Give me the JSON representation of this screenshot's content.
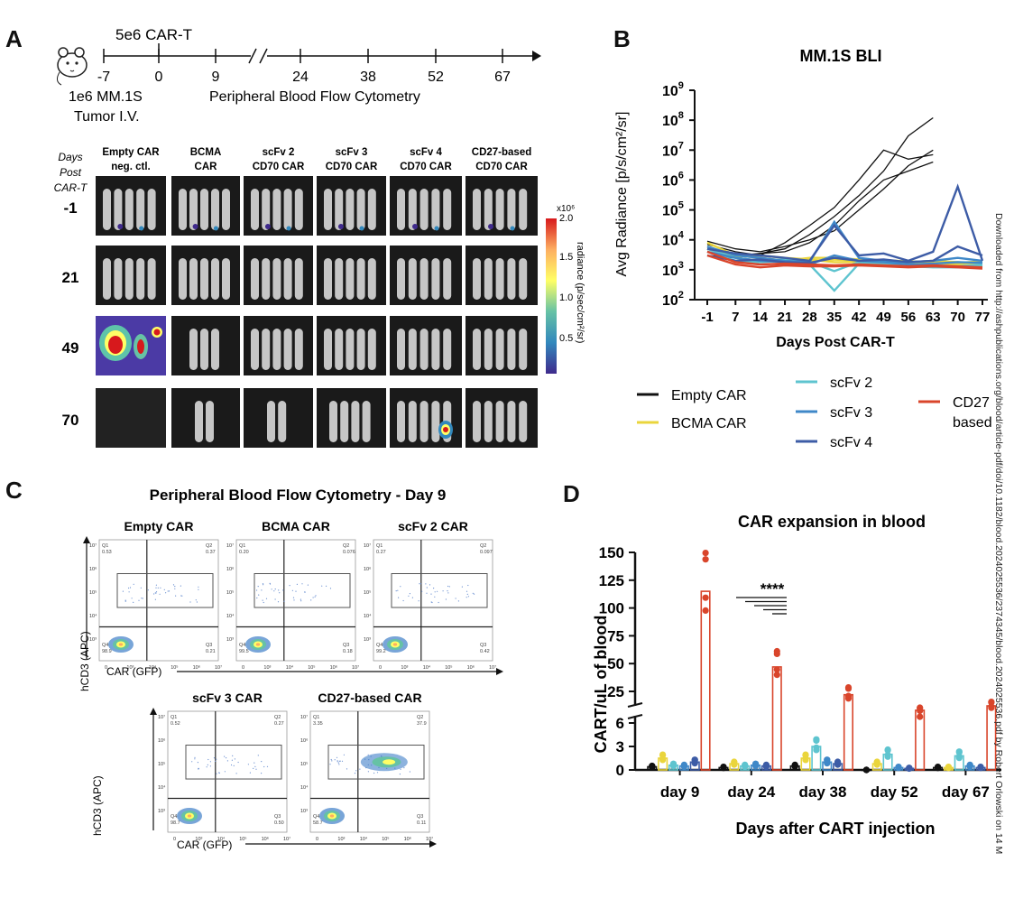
{
  "panel_labels": {
    "a": "A",
    "b": "B",
    "c": "C",
    "d": "D"
  },
  "panel_a": {
    "dose": "5e6 CAR-T",
    "timeline_ticks": [
      "-7",
      "0",
      "9",
      "24",
      "38",
      "52",
      "67"
    ],
    "tumor_line1": "1e6 MM.1S",
    "tumor_line2": "Tumor I.V.",
    "flow_label": "Peripheral Blood Flow Cytometry",
    "row_header": [
      "Days",
      "Post",
      "CAR-T"
    ],
    "days": [
      "-1",
      "21",
      "49",
      "70"
    ],
    "groups": [
      {
        "line1": "Empty CAR",
        "line2": "neg. ctl."
      },
      {
        "line1": "BCMA",
        "line2": "CAR"
      },
      {
        "line1": "scFv 2",
        "line2": "CD70 CAR"
      },
      {
        "line1": "scFv 3",
        "line2": "CD70 CAR"
      },
      {
        "line1": "scFv 4",
        "line2": "CD70 CAR"
      },
      {
        "line1": "CD27-based",
        "line2": "CD70 CAR"
      }
    ],
    "colorbar": {
      "multiplier": "x10⁶",
      "ticks": [
        "2.0",
        "1.5",
        "1.0",
        "0.5"
      ],
      "label": "radiance (p/sec/cm²/sr)",
      "colors": [
        "#d7191c",
        "#fdae61",
        "#ffff66",
        "#66c2a5",
        "#3288bd",
        "#3f2a8c"
      ]
    }
  },
  "panel_b": {
    "chart_data": {
      "type": "line",
      "title": "MM.1S BLI",
      "xlabel": "Days Post CAR-T",
      "ylabel": "Avg Radiance [p/s/cm²/sr]",
      "yscale": "log",
      "ylim": [
        100,
        1000000000
      ],
      "y_ticks": [
        {
          "base": "10",
          "exp": "9"
        },
        {
          "base": "10",
          "exp": "8"
        },
        {
          "base": "10",
          "exp": "7"
        },
        {
          "base": "10",
          "exp": "6"
        },
        {
          "base": "10",
          "exp": "5"
        },
        {
          "base": "10",
          "exp": "4"
        },
        {
          "base": "10",
          "exp": "3"
        },
        {
          "base": "10",
          "exp": "2"
        }
      ],
      "x_ticks": [
        "-1",
        "7",
        "14",
        "21",
        "28",
        "35",
        "42",
        "49",
        "56",
        "63",
        "70",
        "77"
      ],
      "legend_position": "bottom",
      "series": [
        {
          "name": "Empty CAR",
          "color": "#111111",
          "lines": [
            [
              [
                -1,
                5000
              ],
              [
                7,
                3000
              ],
              [
                14,
                3500
              ],
              [
                21,
                5000
              ],
              [
                28,
                15000
              ],
              [
                35,
                60000
              ],
              [
                42,
                300000
              ],
              [
                49,
                2000000
              ],
              [
                56,
                30000000
              ],
              [
                63,
                120000000
              ]
            ],
            [
              [
                -1,
                7000
              ],
              [
                7,
                4000
              ],
              [
                14,
                3000
              ],
              [
                21,
                8000
              ],
              [
                28,
                30000
              ],
              [
                35,
                120000
              ],
              [
                42,
                1000000
              ],
              [
                49,
                10000000
              ],
              [
                56,
                5000000
              ],
              [
                63,
                7000000
              ]
            ],
            [
              [
                -1,
                3000
              ],
              [
                7,
                2500
              ],
              [
                14,
                3500
              ],
              [
                21,
                4000
              ],
              [
                28,
                8000
              ],
              [
                35,
                30000
              ],
              [
                42,
                200000
              ],
              [
                49,
                1000000
              ],
              [
                56,
                2000000
              ],
              [
                63,
                4000000
              ]
            ],
            [
              [
                -1,
                9000
              ],
              [
                7,
                5000
              ],
              [
                14,
                4000
              ],
              [
                21,
                6000
              ],
              [
                28,
                10000
              ],
              [
                35,
                20000
              ],
              [
                42,
                100000
              ],
              [
                49,
                500000
              ],
              [
                56,
                3000000
              ],
              [
                63,
                10000000
              ]
            ]
          ]
        },
        {
          "name": "BCMA CAR",
          "color": "#ead53c",
          "lines": [
            [
              [
                -1,
                8000
              ],
              [
                7,
                3000
              ],
              [
                14,
                2500
              ],
              [
                21,
                2000
              ],
              [
                28,
                2500
              ],
              [
                35,
                2500
              ],
              [
                42,
                2200
              ],
              [
                49,
                2000
              ],
              [
                56,
                1800
              ],
              [
                63,
                2000
              ],
              [
                70,
                1800
              ],
              [
                77,
                1600
              ]
            ],
            [
              [
                -1,
                5000
              ],
              [
                7,
                2500
              ],
              [
                14,
                2000
              ],
              [
                21,
                1800
              ],
              [
                28,
                2000
              ],
              [
                35,
                2200
              ],
              [
                42,
                2000
              ],
              [
                49,
                1800
              ],
              [
                56,
                1600
              ],
              [
                63,
                1700
              ],
              [
                70,
                1500
              ],
              [
                77,
                1400
              ]
            ],
            [
              [
                -1,
                6000
              ],
              [
                7,
                2800
              ],
              [
                14,
                3000
              ],
              [
                21,
                2500
              ],
              [
                28,
                2200
              ],
              [
                35,
                1800
              ],
              [
                42,
                1800
              ],
              [
                49,
                2100
              ],
              [
                56,
                1900
              ],
              [
                63,
                1800
              ],
              [
                70,
                1700
              ],
              [
                77,
                1900
              ]
            ]
          ]
        },
        {
          "name": "scFv 2",
          "color": "#5ec4cf",
          "lines": [
            [
              [
                -1,
                4000
              ],
              [
                7,
                2000
              ],
              [
                14,
                1800
              ],
              [
                21,
                2000
              ],
              [
                28,
                1500
              ],
              [
                35,
                200
              ],
              [
                42,
                1600
              ],
              [
                49,
                1500
              ],
              [
                56,
                1300
              ],
              [
                63,
                1200
              ],
              [
                70,
                1200
              ],
              [
                77,
                1400
              ]
            ],
            [
              [
                -1,
                5000
              ],
              [
                7,
                2500
              ],
              [
                14,
                2000
              ],
              [
                21,
                2200
              ],
              [
                28,
                1800
              ],
              [
                35,
                900
              ],
              [
                42,
                1800
              ],
              [
                49,
                1600
              ],
              [
                56,
                1500
              ],
              [
                63,
                1400
              ],
              [
                70,
                1300
              ],
              [
                77,
                1500
              ]
            ]
          ]
        },
        {
          "name": "scFv 3",
          "color": "#3f88c8",
          "lines": [
            [
              [
                -1,
                6000
              ],
              [
                7,
                3000
              ],
              [
                14,
                2500
              ],
              [
                21,
                2000
              ],
              [
                28,
                1800
              ],
              [
                35,
                40000
              ],
              [
                42,
                2500
              ],
              [
                49,
                2000
              ],
              [
                56,
                1800
              ],
              [
                63,
                2000
              ],
              [
                70,
                2500
              ],
              [
                77,
                2000
              ]
            ],
            [
              [
                -1,
                4000
              ],
              [
                7,
                2500
              ],
              [
                14,
                2000
              ],
              [
                21,
                1800
              ],
              [
                28,
                1500
              ],
              [
                35,
                3000
              ],
              [
                42,
                2000
              ],
              [
                49,
                1800
              ],
              [
                56,
                1500
              ],
              [
                63,
                1600
              ],
              [
                70,
                1800
              ],
              [
                77,
                1700
              ]
            ]
          ]
        },
        {
          "name": "scFv 4",
          "color": "#3d5ca6",
          "lines": [
            [
              [
                -1,
                5000
              ],
              [
                7,
                3500
              ],
              [
                14,
                3000
              ],
              [
                21,
                2500
              ],
              [
                28,
                2000
              ],
              [
                35,
                30000
              ],
              [
                42,
                3000
              ],
              [
                49,
                3500
              ],
              [
                56,
                2000
              ],
              [
                63,
                4000
              ],
              [
                70,
                600000
              ],
              [
                77,
                2000
              ]
            ],
            [
              [
                -1,
                3000
              ],
              [
                7,
                2000
              ],
              [
                14,
                2200
              ],
              [
                21,
                1800
              ],
              [
                28,
                1700
              ],
              [
                35,
                2500
              ],
              [
                42,
                2000
              ],
              [
                49,
                2200
              ],
              [
                56,
                1800
              ],
              [
                63,
                2000
              ],
              [
                70,
                6000
              ],
              [
                77,
                3000
              ]
            ]
          ]
        },
        {
          "name": "CD27-based",
          "color": "#d9452b",
          "lines": [
            [
              [
                -1,
                4000
              ],
              [
                7,
                1800
              ],
              [
                14,
                1500
              ],
              [
                21,
                1600
              ],
              [
                28,
                1500
              ],
              [
                35,
                1400
              ],
              [
                42,
                1500
              ],
              [
                49,
                1400
              ],
              [
                56,
                1300
              ],
              [
                63,
                1400
              ],
              [
                70,
                1300
              ],
              [
                77,
                1200
              ]
            ],
            [
              [
                -1,
                3000
              ],
              [
                7,
                1500
              ],
              [
                14,
                1200
              ],
              [
                21,
                1400
              ],
              [
                28,
                1300
              ],
              [
                35,
                1300
              ],
              [
                42,
                1400
              ],
              [
                49,
                1300
              ],
              [
                56,
                1200
              ],
              [
                63,
                1300
              ],
              [
                70,
                1200
              ],
              [
                77,
                1100
              ]
            ]
          ]
        }
      ]
    },
    "legend": [
      {
        "label": "Empty CAR",
        "color": "#111111"
      },
      {
        "label": "BCMA CAR",
        "color": "#ead53c"
      },
      {
        "label": "scFv 2",
        "color": "#5ec4cf"
      },
      {
        "label": "scFv 3",
        "color": "#3f88c8"
      },
      {
        "label": "scFv 4",
        "color": "#3d5ca6"
      },
      {
        "label": "CD27",
        "label2": "based",
        "color": "#d9452b"
      }
    ]
  },
  "panel_c": {
    "title": "Peripheral Blood Flow Cytometry - Day 9",
    "yaxis": "hCD3 (APC)",
    "xaxis": "CAR (GFP)",
    "axis_ticks": [
      "0",
      "10³",
      "10⁴",
      "10⁵",
      "10⁶",
      "10⁷"
    ],
    "plots": [
      {
        "name": "Empty CAR",
        "q1": "0.53",
        "q2": "0.37",
        "q3": "0.21",
        "q4": "98.9",
        "q1l": "Q1",
        "q2l": "Q2",
        "q3l": "Q3",
        "q4l": "Q4"
      },
      {
        "name": "BCMA CAR",
        "q1": "0.20",
        "q2": "0.076",
        "q3": "0.18",
        "q4": "99.5",
        "q1l": "Q1",
        "q2l": "Q2",
        "q3l": "Q3",
        "q4l": "Q4"
      },
      {
        "name": "scFv 2 CAR",
        "q1": "0.27",
        "q2": "0.097",
        "q3": "0.42",
        "q4": "99.2",
        "q1l": "Q1",
        "q2l": "Q2",
        "q3l": "Q3",
        "q4l": "Q4"
      },
      {
        "name": "scFv 3 CAR",
        "q1": "0.52",
        "q2": "0.27",
        "q3": "0.50",
        "q4": "98.7",
        "q1l": "Q1",
        "q2l": "Q2",
        "q3l": "Q3",
        "q4l": "Q4"
      },
      {
        "name": "CD27-based CAR",
        "q1": "3.35",
        "q2": "37.9",
        "q3": "0.11",
        "q4": "58.7",
        "q1l": "Q1",
        "q2l": "Q2",
        "q3l": "Q3",
        "q4l": "Q4"
      }
    ]
  },
  "panel_d": {
    "chart_data": {
      "type": "bar",
      "title": "CAR expansion in blood",
      "xlabel": "Days after CART injection",
      "ylabel": "CART/uL of blood",
      "y_ticks_upper": [
        "150",
        "125",
        "100",
        "75",
        "50",
        "25"
      ],
      "y_ticks_lower": [
        "6",
        "3",
        "0"
      ],
      "categories": [
        "day 9",
        "day 24",
        "day 38",
        "day 52",
        "day 67"
      ],
      "significance": "****",
      "series": [
        {
          "name": "Empty CAR",
          "color": "#111111",
          "values": [
            0.4,
            0.3,
            0.5,
            0,
            0.3
          ]
        },
        {
          "name": "BCMA CAR",
          "color": "#ead53c",
          "values": [
            1.5,
            0.8,
            1.5,
            0.8,
            0.3
          ]
        },
        {
          "name": "scFv 2",
          "color": "#5ec4cf",
          "values": [
            0.6,
            0.5,
            3,
            2,
            1.8
          ]
        },
        {
          "name": "scFv 3",
          "color": "#3f88c8",
          "values": [
            0.5,
            0.6,
            1,
            0.3,
            0.5
          ]
        },
        {
          "name": "scFv 4",
          "color": "#3d5ca6",
          "values": [
            1,
            0.5,
            0.8,
            0.2,
            0.3
          ]
        },
        {
          "name": "CD27-based",
          "color": "#d9452b",
          "values": [
            115,
            47,
            22,
            8,
            12
          ]
        }
      ]
    }
  },
  "side_note": "Downloaded from http://ashpublications.org/blood/article-pdf/doi/10.1182/blood.2024025536/2374345/blood.2024025536.pdf by Robert Orlowski on 14 M"
}
